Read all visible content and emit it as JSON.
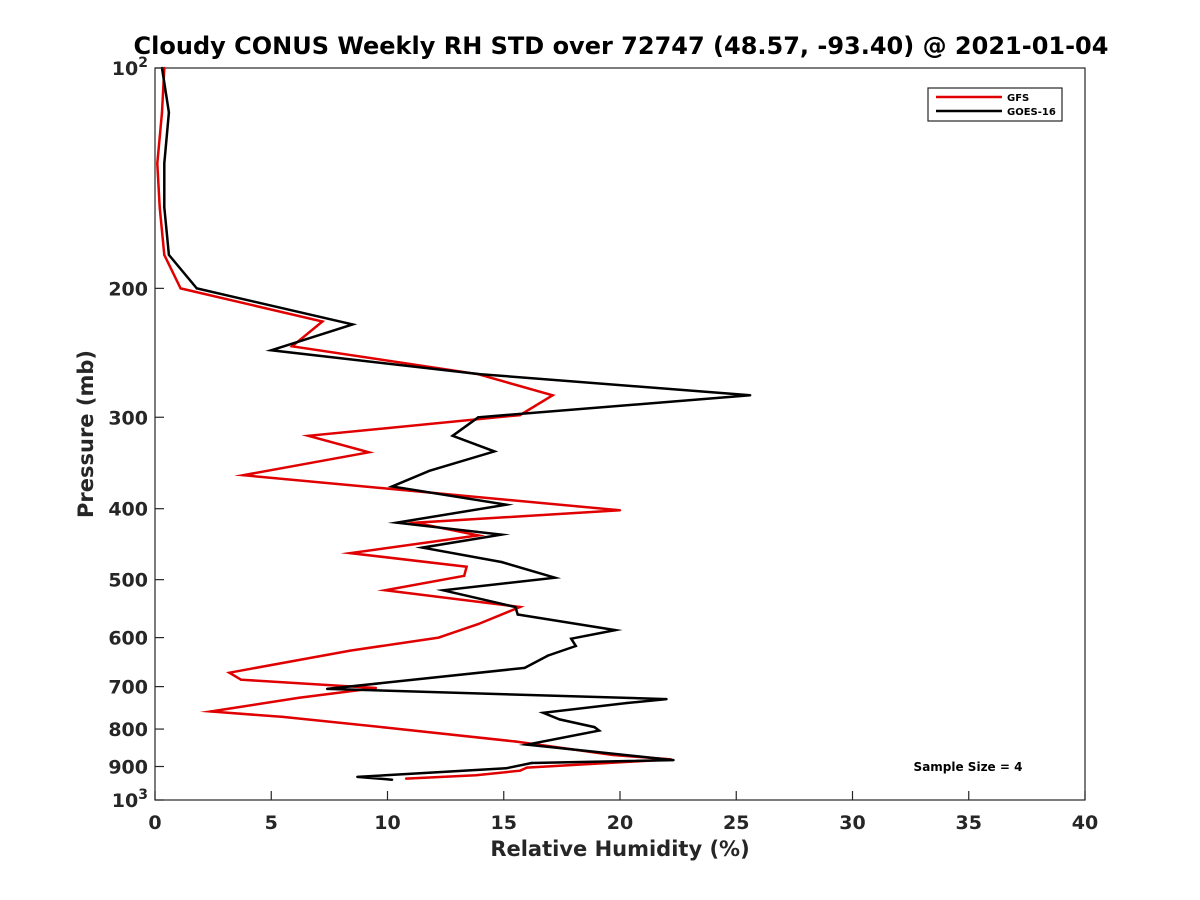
{
  "chart_data": {
    "type": "line",
    "title": "Cloudy CONUS Weekly RH STD over 72747 (48.57, -93.40) @ 2021-01-04",
    "xlabel": "Relative Humidity (%)",
    "ylabel": "Pressure (mb)",
    "xlim": [
      0,
      40
    ],
    "ylim": [
      100,
      1000
    ],
    "yscale": "log",
    "yreverse": true,
    "xticks": [
      0,
      5,
      10,
      15,
      20,
      25,
      30,
      35,
      40
    ],
    "yticks": [
      {
        "value": 100,
        "base": "10",
        "exp": "2"
      },
      {
        "value": 200,
        "label": "200"
      },
      {
        "value": 300,
        "label": "300"
      },
      {
        "value": 400,
        "label": "400"
      },
      {
        "value": 500,
        "label": "500"
      },
      {
        "value": 600,
        "label": "600"
      },
      {
        "value": 700,
        "label": "700"
      },
      {
        "value": 800,
        "label": "800"
      },
      {
        "value": 900,
        "label": "900"
      },
      {
        "value": 1000,
        "base": "10",
        "exp": "3"
      }
    ],
    "legend_position": "top-right",
    "annotation": "Sample Size = 4",
    "series": [
      {
        "name": "GFS",
        "color": "#e00000",
        "points": [
          [
            0.4,
            100
          ],
          [
            0.3,
            115
          ],
          [
            0.1,
            135
          ],
          [
            0.2,
            155
          ],
          [
            0.4,
            180
          ],
          [
            1.1,
            200
          ],
          [
            7.2,
            222
          ],
          [
            5.9,
            240
          ],
          [
            13.9,
            262
          ],
          [
            17.1,
            280
          ],
          [
            15.7,
            298
          ],
          [
            6.6,
            318
          ],
          [
            9.2,
            335
          ],
          [
            3.8,
            360
          ],
          [
            20.0,
            402
          ],
          [
            11.2,
            418
          ],
          [
            13.9,
            435
          ],
          [
            8.4,
            460
          ],
          [
            13.4,
            480
          ],
          [
            13.3,
            494
          ],
          [
            9.9,
            517
          ],
          [
            15.7,
            545
          ],
          [
            13.9,
            575
          ],
          [
            12.2,
            600
          ],
          [
            8.4,
            625
          ],
          [
            3.2,
            670
          ],
          [
            3.7,
            685
          ],
          [
            9.5,
            703
          ],
          [
            6.2,
            725
          ],
          [
            2.4,
            757
          ],
          [
            5.5,
            770
          ],
          [
            9.9,
            796
          ],
          [
            15.5,
            832
          ],
          [
            19.7,
            868
          ],
          [
            22.2,
            880
          ],
          [
            16.0,
            903
          ],
          [
            15.7,
            912
          ],
          [
            13.8,
            925
          ],
          [
            10.8,
            935
          ]
        ]
      },
      {
        "name": "GOES-16",
        "color": "#000000",
        "points": [
          [
            0.3,
            100
          ],
          [
            0.6,
            115
          ],
          [
            0.4,
            135
          ],
          [
            0.4,
            155
          ],
          [
            0.6,
            180
          ],
          [
            1.8,
            200
          ],
          [
            8.5,
            224
          ],
          [
            5.0,
            243
          ],
          [
            14.0,
            262
          ],
          [
            25.6,
            280
          ],
          [
            13.9,
            300
          ],
          [
            12.8,
            318
          ],
          [
            14.6,
            334
          ],
          [
            11.8,
            355
          ],
          [
            10.2,
            373
          ],
          [
            15.1,
            395
          ],
          [
            10.4,
            418
          ],
          [
            14.9,
            434
          ],
          [
            11.5,
            452
          ],
          [
            14.9,
            473
          ],
          [
            17.2,
            497
          ],
          [
            12.4,
            517
          ],
          [
            15.5,
            545
          ],
          [
            15.6,
            558
          ],
          [
            19.8,
            586
          ],
          [
            17.9,
            602
          ],
          [
            18.1,
            616
          ],
          [
            16.9,
            635
          ],
          [
            15.9,
            660
          ],
          [
            7.4,
            705
          ],
          [
            22.0,
            728
          ],
          [
            20.3,
            737
          ],
          [
            16.7,
            760
          ],
          [
            17.4,
            776
          ],
          [
            18.9,
            795
          ],
          [
            19.1,
            804
          ],
          [
            16.0,
            840
          ],
          [
            22.3,
            882
          ],
          [
            16.2,
            890
          ],
          [
            15.1,
            905
          ],
          [
            8.7,
            930
          ],
          [
            10.2,
            938
          ]
        ]
      }
    ]
  }
}
